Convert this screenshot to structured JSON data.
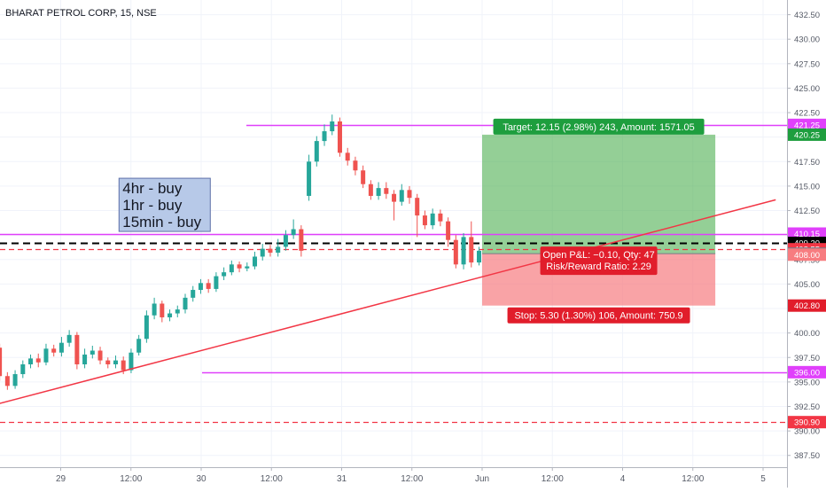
{
  "chart_data": {
    "type": "candlestick",
    "title": "BHARAT PETROL CORP, 15, NSE",
    "ylim": [
      386.3,
      434.0
    ],
    "y_ticks": [
      "387.50",
      "390.00",
      "392.50",
      "395.00",
      "397.50",
      "400.00",
      "402.50",
      "405.00",
      "407.50",
      "410.00",
      "412.50",
      "415.00",
      "417.50",
      "420.00",
      "422.50",
      "425.00",
      "427.50",
      "430.00",
      "432.50"
    ],
    "x_ticks": [
      "2:00",
      "29",
      "12:00",
      "30",
      "12:00",
      "31",
      "12:00",
      "Jun",
      "12:00",
      "4",
      "12:00",
      "5"
    ],
    "x_tick_positions": [
      0.5,
      1,
      1.5,
      2,
      2.5,
      3,
      3.5,
      4,
      4.5,
      5,
      5.5,
      6
    ],
    "candles": [
      [
        408.8,
        408.6,
        408.0,
        409.1
      ],
      [
        408.6,
        408.4,
        408.0,
        408.9
      ],
      [
        408.4,
        408.0,
        407.4,
        408.7
      ],
      [
        408.0,
        409.4,
        407.8,
        409.7
      ],
      [
        409.4,
        411.0,
        409.0,
        411.4
      ],
      [
        411.0,
        412.2,
        410.7,
        412.5
      ],
      [
        412.2,
        410.2,
        409.8,
        412.4
      ],
      [
        410.2,
        404.8,
        404.2,
        410.4
      ],
      [
        404.8,
        402.0,
        401.4,
        405.2
      ],
      [
        402.0,
        403.6,
        401.7,
        404.2
      ],
      [
        403.6,
        398.5,
        398.0,
        403.8
      ],
      [
        398.5,
        395.6,
        395.1,
        398.9
      ],
      [
        395.6,
        394.6,
        394.2,
        396.0
      ],
      [
        394.6,
        395.8,
        394.3,
        396.2
      ],
      [
        395.8,
        396.8,
        395.4,
        397.2
      ],
      [
        396.8,
        397.4,
        396.4,
        397.8
      ],
      [
        397.4,
        397.0,
        396.5,
        397.9
      ],
      [
        397.0,
        398.4,
        396.7,
        398.9
      ],
      [
        398.4,
        398.0,
        397.6,
        398.8
      ],
      [
        398.0,
        399.0,
        397.6,
        399.6
      ],
      [
        399.0,
        399.8,
        398.6,
        400.3
      ],
      [
        399.8,
        396.8,
        396.3,
        400.1
      ],
      [
        396.8,
        397.8,
        396.4,
        398.4
      ],
      [
        397.8,
        398.2,
        397.4,
        398.7
      ],
      [
        398.2,
        397.2,
        396.8,
        398.6
      ],
      [
        397.2,
        396.8,
        396.4,
        397.5
      ],
      [
        396.8,
        397.2,
        396.4,
        397.7
      ],
      [
        397.2,
        396.2,
        395.8,
        397.6
      ],
      [
        396.2,
        398.0,
        395.9,
        398.4
      ],
      [
        398.0,
        399.4,
        397.7,
        399.8
      ],
      [
        399.4,
        401.8,
        399.0,
        402.3
      ],
      [
        401.8,
        403.0,
        401.4,
        403.6
      ],
      [
        403.0,
        401.6,
        401.1,
        403.3
      ],
      [
        401.6,
        402.0,
        401.2,
        402.4
      ],
      [
        402.0,
        402.4,
        401.6,
        402.8
      ],
      [
        402.4,
        403.6,
        402.0,
        404.0
      ],
      [
        403.6,
        404.4,
        403.2,
        404.8
      ],
      [
        404.4,
        405.1,
        404.0,
        405.5
      ],
      [
        405.1,
        404.5,
        404.1,
        405.5
      ],
      [
        404.5,
        405.8,
        404.2,
        406.2
      ],
      [
        405.8,
        406.2,
        405.4,
        406.7
      ],
      [
        406.2,
        407.0,
        405.9,
        407.4
      ],
      [
        407.0,
        406.6,
        406.2,
        407.3
      ],
      [
        406.6,
        406.8,
        406.3,
        407.2
      ],
      [
        406.8,
        407.8,
        406.5,
        408.3
      ],
      [
        407.8,
        408.6,
        407.4,
        409.1
      ],
      [
        408.6,
        408.2,
        407.8,
        409.0
      ],
      [
        408.2,
        408.8,
        407.8,
        409.6
      ],
      [
        408.8,
        410.0,
        408.4,
        410.5
      ],
      [
        410.0,
        410.6,
        409.6,
        411.6
      ],
      [
        410.6,
        408.4,
        407.8,
        411.0
      ],
      [
        414.0,
        417.5,
        413.5,
        418.2
      ],
      [
        417.5,
        419.6,
        417.0,
        420.1
      ],
      [
        419.6,
        420.6,
        419.1,
        421.3
      ],
      [
        420.6,
        421.6,
        420.2,
        422.3
      ],
      [
        421.6,
        418.4,
        418.0,
        422.0
      ],
      [
        418.4,
        417.6,
        417.1,
        418.9
      ],
      [
        417.6,
        416.6,
        416.1,
        418.0
      ],
      [
        416.6,
        415.2,
        414.8,
        417.1
      ],
      [
        415.2,
        414.0,
        413.6,
        415.6
      ],
      [
        414.0,
        414.8,
        413.6,
        415.4
      ],
      [
        414.8,
        414.2,
        413.7,
        415.4
      ],
      [
        414.2,
        413.4,
        411.5,
        414.6
      ],
      [
        413.4,
        414.6,
        413.0,
        415.2
      ],
      [
        414.6,
        413.8,
        413.2,
        415.0
      ],
      [
        413.8,
        412.0,
        409.8,
        414.2
      ],
      [
        412.0,
        411.0,
        410.6,
        412.5
      ],
      [
        411.0,
        412.2,
        410.6,
        412.7
      ],
      [
        412.2,
        411.4,
        410.9,
        412.6
      ],
      [
        411.4,
        409.5,
        408.8,
        411.8
      ],
      [
        409.5,
        407.0,
        406.6,
        410.0
      ],
      [
        407.0,
        409.8,
        406.5,
        410.2
      ],
      [
        409.8,
        407.2,
        406.7,
        411.4
      ],
      [
        407.2,
        408.4,
        406.9,
        408.8
      ]
    ],
    "price_lines": [
      {
        "value": 421.25,
        "style": "solid",
        "color": "#e040fb",
        "label": "421.25"
      },
      {
        "value": 410.15,
        "style": "solid",
        "color": "#e040fb",
        "label": "410.15"
      },
      {
        "value": 396.0,
        "style": "solid",
        "color": "#e040fb",
        "label": "396.00"
      },
      {
        "value": 409.2,
        "style": "dashed",
        "color": "#000000",
        "label": "409.20"
      },
      {
        "value": 408.55,
        "style": "dashed",
        "color": "#f23645",
        "label": "408.55"
      },
      {
        "value": 390.9,
        "style": "dashed",
        "color": "#f23645",
        "label": "390.90"
      }
    ],
    "trendline": {
      "start": [
        -0.1,
        390.3
      ],
      "end": [
        6.09,
        413.6
      ],
      "color": "#f23645"
    },
    "position": {
      "x_start": 4.0,
      "x_end": 5.66,
      "entry": 408.1,
      "target": 420.25,
      "stop": 402.8,
      "target_text": "Target: 12.15 (2.98%) 243, Amount: 1571.05",
      "stop_text": "Stop: 5.30 (1.30%) 106, Amount: 750.9",
      "pnl_text": "Open P&L: −0.10, Qty: 47",
      "rr_text": "Risk/Reward Ratio: 2.29"
    },
    "axis_badges": [
      {
        "value": 421.25,
        "label": "421.25",
        "bg": "#e040fb",
        "fg": "#ffffff"
      },
      {
        "value": 420.25,
        "label": "420.25",
        "bg": "#1e9e3e",
        "fg": "#ffffff"
      },
      {
        "value": 410.15,
        "label": "410.15",
        "bg": "#e040fb",
        "fg": "#ffffff"
      },
      {
        "value": 409.2,
        "label": "409.20",
        "bg": "#000000",
        "fg": "#ffffff"
      },
      {
        "value": 408.55,
        "label": "408.55",
        "bg": "#f23645",
        "fg": "#ffffff"
      },
      {
        "value": 408.1,
        "label": "408.10",
        "bg": "#787b86",
        "fg": "#ffffff"
      },
      {
        "value": 408.0,
        "label": "408.00",
        "bg": "#f77c80",
        "fg": "#ffffff"
      },
      {
        "value": 402.8,
        "label": "402.80",
        "bg": "#e11d2b",
        "fg": "#ffffff"
      },
      {
        "value": 396.0,
        "label": "396.00",
        "bg": "#e040fb",
        "fg": "#ffffff"
      },
      {
        "value": 390.9,
        "label": "390.90",
        "bg": "#f23645",
        "fg": "#ffffff"
      }
    ],
    "note": {
      "lines": [
        "4hr - buy",
        "1hr - buy",
        "15min - buy"
      ],
      "bg": "#b7c9e8",
      "border": "#5d6fa8",
      "x": 1.415,
      "price": 415.8
    },
    "colors": {
      "up": "#26a69a",
      "down": "#ef5350"
    }
  }
}
